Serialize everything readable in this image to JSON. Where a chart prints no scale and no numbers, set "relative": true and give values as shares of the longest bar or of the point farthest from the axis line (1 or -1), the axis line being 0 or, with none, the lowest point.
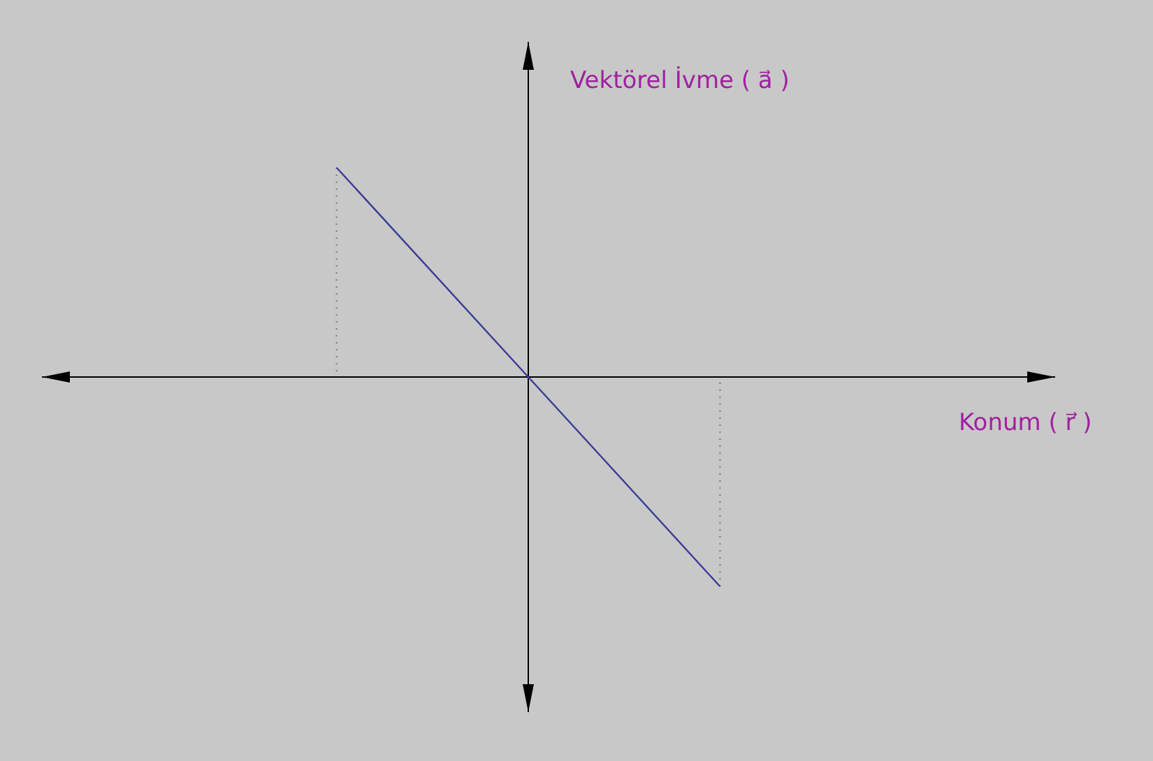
{
  "chart_data": {
    "type": "line",
    "relative": true,
    "xlabel": "Konum ( r⃗ )",
    "ylabel": "Vektörel İvme ( a⃗ )",
    "categories": [
      null,
      null,
      null,
      null,
      null
    ],
    "series": [
      {
        "color": "#3c3c96",
        "values": [
          null,
          1,
          0,
          -1,
          null
        ]
      }
    ]
  }
}
